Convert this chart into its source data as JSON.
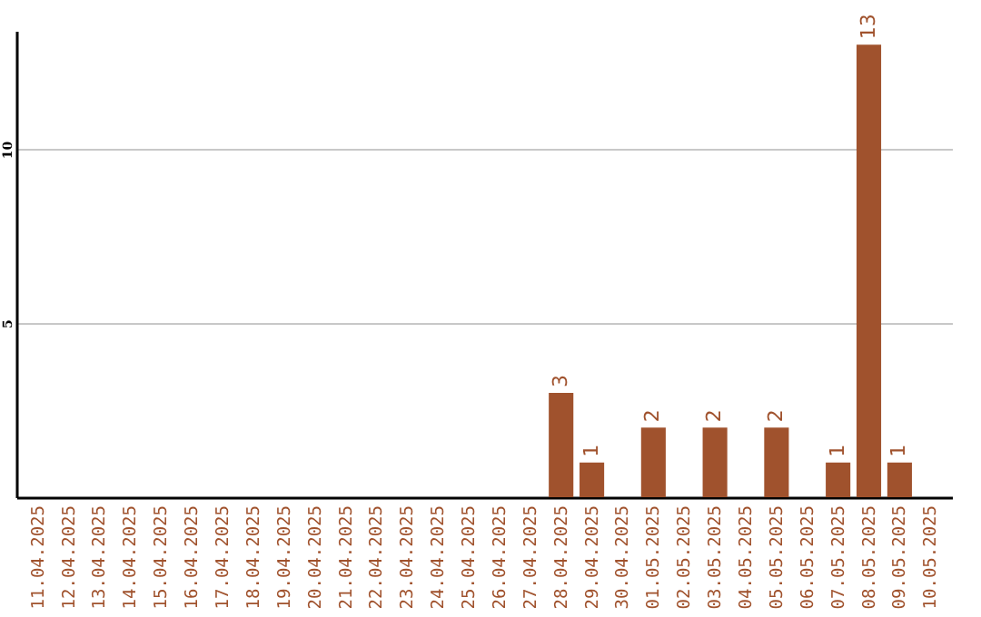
{
  "chart_data": {
    "type": "bar",
    "categories": [
      "11.04.2025",
      "12.04.2025",
      "13.04.2025",
      "14.04.2025",
      "15.04.2025",
      "16.04.2025",
      "17.04.2025",
      "18.04.2025",
      "19.04.2025",
      "20.04.2025",
      "21.04.2025",
      "22.04.2025",
      "23.04.2025",
      "24.04.2025",
      "25.04.2025",
      "26.04.2025",
      "27.04.2025",
      "28.04.2025",
      "29.04.2025",
      "30.04.2025",
      "01.05.2025",
      "02.05.2025",
      "03.05.2025",
      "04.05.2025",
      "05.05.2025",
      "06.05.2025",
      "07.05.2025",
      "08.05.2025",
      "09.05.2025",
      "10.05.2025"
    ],
    "values": [
      0,
      0,
      0,
      0,
      0,
      0,
      0,
      0,
      0,
      0,
      0,
      0,
      0,
      0,
      0,
      0,
      0,
      3,
      1,
      0,
      2,
      0,
      2,
      0,
      2,
      0,
      1,
      13,
      1,
      0
    ],
    "value_labels": [
      null,
      null,
      null,
      null,
      null,
      null,
      null,
      null,
      null,
      null,
      null,
      null,
      null,
      null,
      null,
      null,
      null,
      "3",
      "1",
      null,
      "2",
      null,
      "2",
      null,
      "2",
      null,
      "1",
      "13",
      "1",
      null
    ],
    "color": "#a0522d",
    "ylim": [
      0,
      13.4
    ],
    "yticks": [
      5,
      10
    ],
    "grid": "y"
  }
}
